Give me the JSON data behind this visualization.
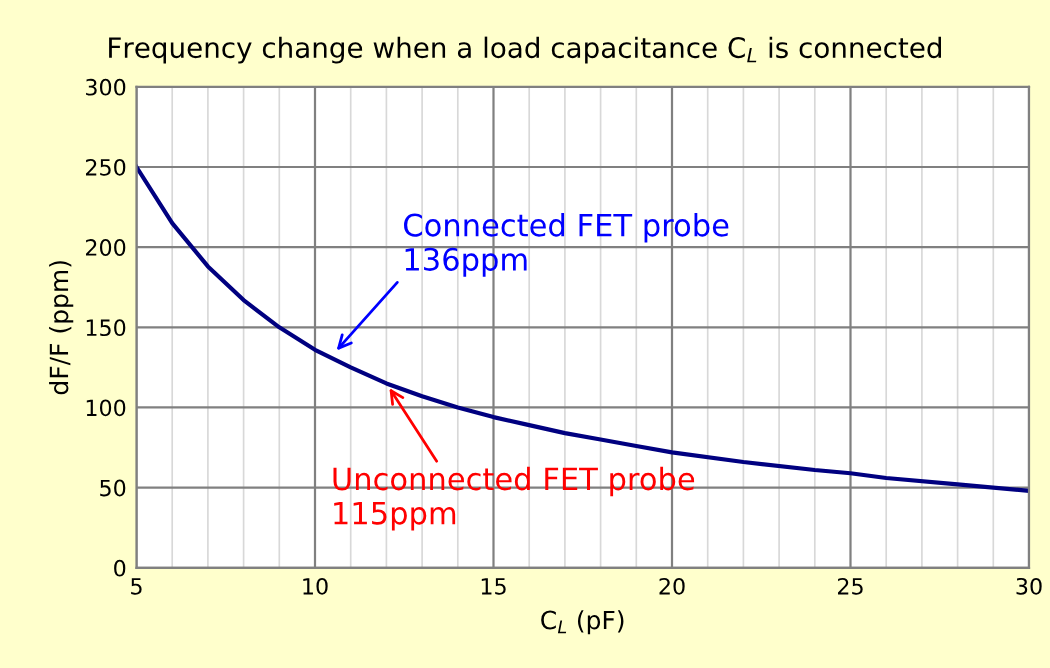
{
  "chart_data": {
    "type": "line",
    "title": "Frequency change when a load capacitance C$_{L}$ is connected",
    "xlabel": "C$_{L}$ (pF)",
    "ylabel": "dF/F (ppm)",
    "x": [
      5,
      6,
      7,
      8,
      9,
      10,
      11,
      12,
      13,
      14,
      15,
      16,
      17,
      18,
      19,
      20,
      22,
      24,
      25,
      26,
      28,
      30
    ],
    "series": [
      {
        "color": "#000080",
        "values": [
          250,
          215,
          188,
          167,
          150,
          136,
          125,
          115,
          107,
          100,
          94,
          89,
          84,
          80,
          76,
          72,
          66,
          61,
          59,
          56,
          52,
          48
        ]
      }
    ],
    "xlim": [
      5,
      30
    ],
    "ylim": [
      0,
      300
    ],
    "xticks": [
      5,
      {
        "value": 6,
        "label": null
      },
      {
        "value": 7,
        "label": null
      },
      {
        "value": 8,
        "label": null
      },
      {
        "value": 9,
        "label": null
      },
      10,
      {
        "value": 11,
        "label": null
      },
      {
        "value": 12,
        "label": null
      },
      {
        "value": 13,
        "label": null
      },
      {
        "value": 14,
        "label": null
      },
      15,
      {
        "value": 16,
        "label": null
      },
      {
        "value": 17,
        "label": null
      },
      {
        "value": 18,
        "label": null
      },
      {
        "value": 19,
        "label": null
      },
      20,
      {
        "value": 21,
        "label": null
      },
      {
        "value": 22,
        "label": null
      },
      {
        "value": 23,
        "label": null
      },
      {
        "value": 24,
        "label": null
      },
      25,
      {
        "value": 26,
        "label": null
      },
      {
        "value": 27,
        "label": null
      },
      {
        "value": 28,
        "label": null
      },
      {
        "value": 29,
        "label": null
      },
      30
    ],
    "yticks": [
      0,
      50,
      100,
      150,
      200,
      250,
      300
    ],
    "grid": true,
    "annotations": [
      {
        "text": "Connected FET probe\n136ppm",
        "x": 10.5,
        "y": 133
      },
      {
        "text": "Unconnected FET probe\n115ppm",
        "x": 12,
        "y": 115
      }
    ]
  }
}
